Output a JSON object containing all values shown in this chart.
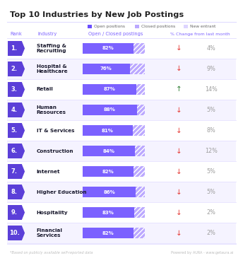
{
  "title": "Top 10 Industries by New Job Postings",
  "legend_items": [
    "Open positions",
    "Closed positions",
    "New entrant"
  ],
  "legend_colors": [
    "#6B4EFF",
    "#BBA8FF",
    "#DDD5FF"
  ],
  "columns": [
    "Rank",
    "Industry",
    "Open / Closed postings",
    "% Change from last month"
  ],
  "rows": [
    {
      "rank": 1,
      "industry": "Staffing &\nRecruiting",
      "open_pct": 82,
      "closed_pct": 18,
      "change": 4,
      "direction": "down"
    },
    {
      "rank": 2,
      "industry": "Hospital &\nHealthcare",
      "open_pct": 76,
      "closed_pct": 24,
      "change": 9,
      "direction": "down"
    },
    {
      "rank": 3,
      "industry": "Retail",
      "open_pct": 87,
      "closed_pct": 13,
      "change": 14,
      "direction": "up"
    },
    {
      "rank": 4,
      "industry": "Human\nResources",
      "open_pct": 88,
      "closed_pct": 12,
      "change": 5,
      "direction": "down"
    },
    {
      "rank": 5,
      "industry": "IT & Services",
      "open_pct": 81,
      "closed_pct": 19,
      "change": 8,
      "direction": "down"
    },
    {
      "rank": 6,
      "industry": "Construction",
      "open_pct": 84,
      "closed_pct": 16,
      "change": 12,
      "direction": "down"
    },
    {
      "rank": 7,
      "industry": "Internet",
      "open_pct": 82,
      "closed_pct": 18,
      "change": 5,
      "direction": "down"
    },
    {
      "rank": 8,
      "industry": "Higher Education",
      "open_pct": 86,
      "closed_pct": 14,
      "change": 5,
      "direction": "down"
    },
    {
      "rank": 9,
      "industry": "Hospitality",
      "open_pct": 83,
      "closed_pct": 17,
      "change": 2,
      "direction": "down"
    },
    {
      "rank": 10,
      "industry": "Financial\nServices",
      "open_pct": 82,
      "closed_pct": 18,
      "change": 2,
      "direction": "down"
    }
  ],
  "rank_badge_color": "#5B3FD8",
  "open_bar_color": "#7B61FF",
  "closed_bar_color": "#BBA8FF",
  "arrow_down_color": "#E53935",
  "arrow_up_color": "#2E7D32",
  "change_text_color": "#9E9E9E",
  "col_header_color": "#7B61FF",
  "row_alt_color": "#F5F3FF",
  "separator_color": "#E8E4FF",
  "bg_color": "#FFFFFF",
  "title_color": "#212121",
  "footer_left": "*Based on publicly available self-reported data",
  "footer_right": "Powered by AURA - www.getaura.ai",
  "footer_color": "#BDBDBD",
  "divider_color": "#E0DCFF"
}
